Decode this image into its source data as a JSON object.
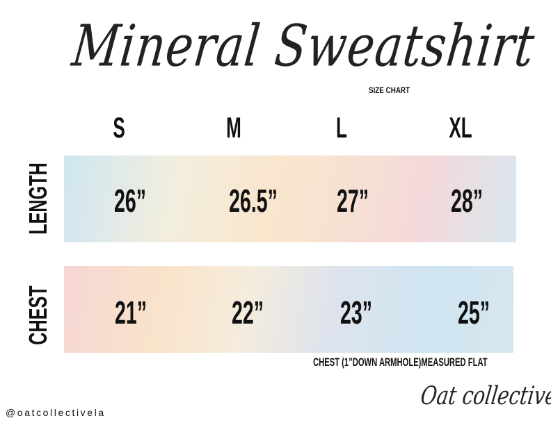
{
  "title": "Mineral Sweatshirt",
  "subtitle": "SIZE CHART",
  "sizes": [
    "S",
    "M",
    "L",
    "XL"
  ],
  "rows": [
    {
      "label": "LENGTH",
      "values": [
        "26”",
        "26.5”",
        "27”",
        "28”"
      ]
    },
    {
      "label": "CHEST",
      "values": [
        "21”",
        "22”",
        "23”",
        "25”"
      ]
    }
  ],
  "note": "CHEST (1”DOWN ARMHOLE)MEASURED FLAT",
  "handle": "@oatcollectivela",
  "brand_logo": "Oat collective"
}
